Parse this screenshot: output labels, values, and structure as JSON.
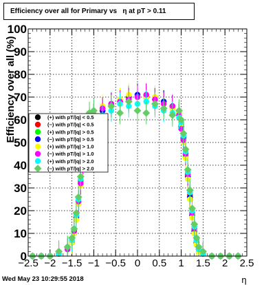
{
  "title": "Efficiency over all for Primary vs   η at pT > 0.11",
  "timestamp": "Wed May 23 10:29:55 2018",
  "chart_data": {
    "type": "scatter",
    "title": "Efficiency over all for Primary vs   η at pT > 0.11",
    "xlabel": "η",
    "ylabel": "Efficiency over all (%)",
    "xlim": [
      -2.5,
      2.5
    ],
    "ylim": [
      0,
      100
    ],
    "x_ticks": [
      "−2.5",
      "−2",
      "−1.5",
      "−1",
      "−0.5",
      "0",
      "0.5",
      "1",
      "1.5",
      "2",
      "2.5"
    ],
    "y_ticks": [
      "0",
      "10",
      "20",
      "30",
      "40",
      "50",
      "60",
      "70",
      "80",
      "90",
      "100"
    ],
    "grid": true,
    "legend_position": "left-middle",
    "series": [
      {
        "name": "(+) with pT/|q| < 0.5",
        "color": "#000000",
        "marker": "circle",
        "x": [
          -2.4,
          -2.2,
          -2.0,
          -1.8,
          -1.6,
          -1.5,
          -1.45,
          -1.4,
          -1.35,
          -1.3,
          -1.25,
          -1.2,
          -1.15,
          -1.1,
          -1.0,
          -0.8,
          -0.6,
          -0.4,
          -0.2,
          0.0,
          0.2,
          0.4,
          0.6,
          0.8,
          0.95,
          1.0,
          1.05,
          1.1,
          1.15,
          1.2,
          1.25,
          1.3,
          1.35,
          1.4,
          1.5,
          1.7,
          1.9,
          2.1,
          2.3
        ],
        "y": [
          0,
          0,
          0,
          1,
          3,
          6,
          10,
          17,
          24,
          33,
          42,
          50,
          56,
          60,
          62,
          64,
          67,
          68,
          70,
          70,
          70,
          69,
          68,
          66,
          63,
          58,
          52,
          44,
          35,
          26,
          18,
          11,
          6,
          3,
          1,
          0,
          0,
          0,
          0
        ]
      },
      {
        "name": "(−) with pT/|q| < 0.5",
        "color": "#ff0000",
        "marker": "circle",
        "x": [
          -2.4,
          -2.2,
          -2.0,
          -1.8,
          -1.6,
          -1.5,
          -1.45,
          -1.4,
          -1.35,
          -1.3,
          -1.25,
          -1.2,
          -1.15,
          -1.1,
          -1.0,
          -0.8,
          -0.6,
          -0.4,
          -0.2,
          0.0,
          0.2,
          0.4,
          0.6,
          0.8,
          0.95,
          1.0,
          1.05,
          1.1,
          1.15,
          1.2,
          1.25,
          1.3,
          1.35,
          1.4,
          1.5,
          1.7,
          1.9,
          2.1,
          2.3
        ],
        "y": [
          0,
          0,
          0,
          1,
          3,
          6,
          11,
          17,
          23,
          32,
          41,
          49,
          55,
          59,
          62,
          65,
          66,
          68,
          69,
          70,
          71,
          69,
          67,
          65,
          62,
          57,
          51,
          46,
          36,
          27,
          19,
          12,
          6,
          3,
          1,
          0,
          0,
          0,
          0
        ]
      },
      {
        "name": "(+) with pT/|q| > 0.5",
        "color": "#00ff00",
        "marker": "circle",
        "x": [
          -2.4,
          -2.2,
          -2.0,
          -1.8,
          -1.6,
          -1.5,
          -1.45,
          -1.4,
          -1.35,
          -1.3,
          -1.25,
          -1.2,
          -1.15,
          -1.1,
          -1.0,
          -0.8,
          -0.6,
          -0.4,
          -0.2,
          0.0,
          0.2,
          0.4,
          0.6,
          0.8,
          0.95,
          1.0,
          1.05,
          1.1,
          1.15,
          1.2,
          1.25,
          1.3,
          1.35,
          1.4,
          1.5,
          1.7,
          1.9,
          2.1,
          2.3
        ],
        "y": [
          0,
          0,
          0,
          1,
          3,
          6,
          10,
          16,
          24,
          33,
          42,
          51,
          57,
          60,
          63,
          65,
          66,
          69,
          70,
          71,
          70,
          70,
          68,
          66,
          63,
          58,
          51,
          44,
          34,
          25,
          17,
          10,
          5,
          2,
          1,
          0,
          0,
          0,
          0
        ]
      },
      {
        "name": "(−) with pT/|q| > 0.5",
        "color": "#0000ff",
        "marker": "circle",
        "x": [
          -2.4,
          -2.2,
          -2.0,
          -1.8,
          -1.6,
          -1.5,
          -1.45,
          -1.4,
          -1.35,
          -1.3,
          -1.25,
          -1.2,
          -1.15,
          -1.1,
          -1.0,
          -0.8,
          -0.6,
          -0.4,
          -0.2,
          0.0,
          0.2,
          0.4,
          0.6,
          0.8,
          0.95,
          1.0,
          1.05,
          1.1,
          1.15,
          1.2,
          1.25,
          1.3,
          1.35,
          1.4,
          1.5,
          1.7,
          1.9,
          2.1,
          2.3
        ],
        "y": [
          0,
          0,
          0,
          1,
          3,
          6,
          11,
          17,
          24,
          32,
          41,
          50,
          56,
          60,
          62,
          64,
          67,
          68,
          70,
          71,
          70,
          69,
          68,
          66,
          62,
          57,
          52,
          45,
          35,
          26,
          18,
          11,
          6,
          3,
          1,
          0,
          0,
          0,
          0
        ]
      },
      {
        "name": "(+) with pT/|q| > 1.0",
        "color": "#ffff00",
        "marker": "circle",
        "x": [
          -2.4,
          -2.2,
          -2.0,
          -1.8,
          -1.6,
          -1.5,
          -1.45,
          -1.4,
          -1.35,
          -1.3,
          -1.25,
          -1.2,
          -1.15,
          -1.1,
          -1.0,
          -0.8,
          -0.6,
          -0.4,
          -0.2,
          0.0,
          0.2,
          0.4,
          0.6,
          0.8,
          0.95,
          1.0,
          1.05,
          1.1,
          1.15,
          1.2,
          1.25,
          1.3,
          1.35,
          1.4,
          1.5,
          1.7,
          1.9,
          2.1,
          2.3
        ],
        "y": [
          0,
          0,
          0,
          1,
          3,
          6,
          10,
          16,
          23,
          31,
          40,
          50,
          57,
          61,
          63,
          66,
          66,
          69,
          71,
          70,
          70,
          70,
          67,
          65,
          63,
          58,
          50,
          43,
          34,
          25,
          17,
          10,
          5,
          2,
          1,
          0,
          0,
          0,
          0
        ]
      },
      {
        "name": "(−) with pT/|q| > 1.0",
        "color": "#ff00ff",
        "marker": "circle",
        "x": [
          -2.4,
          -2.2,
          -2.0,
          -1.8,
          -1.6,
          -1.5,
          -1.45,
          -1.4,
          -1.35,
          -1.3,
          -1.25,
          -1.2,
          -1.15,
          -1.1,
          -1.0,
          -0.8,
          -0.6,
          -0.4,
          -0.2,
          0.0,
          0.2,
          0.4,
          0.6,
          0.8,
          0.95,
          1.0,
          1.05,
          1.1,
          1.15,
          1.2,
          1.25,
          1.3,
          1.35,
          1.4,
          1.5,
          1.7,
          1.9,
          2.1,
          2.3
        ],
        "y": [
          0,
          0,
          0,
          1,
          3,
          7,
          11,
          18,
          24,
          32,
          41,
          49,
          55,
          59,
          62,
          65,
          67,
          68,
          69,
          70,
          71,
          69,
          67,
          66,
          62,
          56,
          51,
          45,
          36,
          28,
          19,
          12,
          7,
          3,
          1,
          0,
          0,
          0,
          0
        ]
      },
      {
        "name": "(+) with pT/|q| > 2.0",
        "color": "#00ffff",
        "marker": "circle",
        "x": [
          -2.4,
          -2.2,
          -2.0,
          -1.8,
          -1.6,
          -1.5,
          -1.45,
          -1.4,
          -1.35,
          -1.3,
          -1.25,
          -1.2,
          -1.15,
          -1.1,
          -1.0,
          -0.8,
          -0.6,
          -0.4,
          -0.2,
          0.0,
          0.2,
          0.4,
          0.6,
          0.8,
          0.95,
          1.0,
          1.05,
          1.1,
          1.15,
          1.2,
          1.25,
          1.3,
          1.35,
          1.4,
          1.5,
          1.7,
          1.9,
          2.1,
          2.3
        ],
        "y": [
          0,
          0,
          0,
          1,
          4,
          7,
          12,
          18,
          25,
          34,
          43,
          52,
          58,
          62,
          64,
          62,
          64,
          67,
          66,
          67,
          68,
          66,
          64,
          63,
          61,
          59,
          53,
          46,
          37,
          28,
          20,
          13,
          7,
          3,
          1,
          0,
          0,
          0,
          0
        ]
      },
      {
        "name": "(−) with pT/|q| > 2.0",
        "color": "#66cc66",
        "marker": "diamond",
        "x": [
          -2.4,
          -2.2,
          -2.0,
          -1.8,
          -1.6,
          -1.5,
          -1.45,
          -1.4,
          -1.35,
          -1.3,
          -1.25,
          -1.2,
          -1.15,
          -1.1,
          -1.0,
          -0.8,
          -0.6,
          -0.4,
          -0.2,
          0.0,
          0.2,
          0.4,
          0.6,
          0.8,
          0.95,
          1.0,
          1.05,
          1.1,
          1.15,
          1.2,
          1.25,
          1.3,
          1.35,
          1.4,
          1.5,
          1.7,
          1.9,
          2.1,
          2.3
        ],
        "y": [
          0,
          0,
          0,
          2,
          4,
          8,
          12,
          19,
          26,
          35,
          44,
          53,
          59,
          63,
          64,
          60,
          66,
          63,
          68,
          64,
          63,
          67,
          65,
          62,
          64,
          60,
          54,
          47,
          38,
          29,
          21,
          14,
          8,
          4,
          2,
          0,
          0,
          0,
          0
        ]
      }
    ]
  }
}
